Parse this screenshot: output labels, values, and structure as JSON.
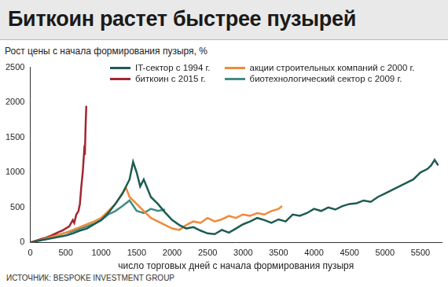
{
  "chart_data": {
    "type": "line",
    "title": "Биткоин растет быстрее пузырей",
    "y_label": "Рост цены с начала формирования пузыря, %",
    "x_label": "число торговых дней с начала формирования пузыря",
    "source": "ИСТОЧНИК: BESPOKE INVESTMENT GROUP",
    "xlim": [
      0,
      5800
    ],
    "xticks": [
      0,
      500,
      1000,
      1500,
      2000,
      2500,
      3000,
      3500,
      4000,
      4500,
      5000,
      5500
    ],
    "ylim": [
      0,
      2500
    ],
    "yticks": [
      0,
      500,
      1000,
      1500,
      2000,
      2500
    ],
    "grid": false,
    "legend": "top",
    "series": [
      {
        "name": "IT-сектор с 1994 г.",
        "color": "#1d5c52",
        "x": [
          0,
          100,
          200,
          300,
          400,
          500,
          600,
          700,
          800,
          900,
          1000,
          1100,
          1200,
          1300,
          1400,
          1450,
          1500,
          1550,
          1600,
          1700,
          1800,
          1900,
          2000,
          2100,
          2200,
          2300,
          2400,
          2500,
          2600,
          2700,
          2800,
          2900,
          3000,
          3100,
          3200,
          3300,
          3400,
          3500,
          3600,
          3700,
          3800,
          3900,
          4000,
          4100,
          4200,
          4300,
          4400,
          4500,
          4600,
          4700,
          4800,
          4900,
          5000,
          5100,
          5200,
          5300,
          5400,
          5500,
          5600,
          5650,
          5700,
          5750
        ],
        "values": [
          0,
          20,
          40,
          60,
          80,
          100,
          130,
          170,
          200,
          260,
          320,
          420,
          550,
          700,
          900,
          1150,
          1000,
          800,
          900,
          650,
          550,
          430,
          320,
          250,
          200,
          220,
          170,
          130,
          120,
          180,
          140,
          200,
          260,
          300,
          350,
          320,
          280,
          330,
          300,
          400,
          380,
          420,
          480,
          450,
          500,
          470,
          520,
          550,
          560,
          600,
          580,
          650,
          700,
          750,
          800,
          850,
          900,
          1000,
          1050,
          1100,
          1180,
          1100
        ]
      },
      {
        "name": "акции строительных компаний с 2000 г.",
        "color": "#f08a3a",
        "x": [
          0,
          100,
          200,
          300,
          400,
          500,
          600,
          700,
          800,
          900,
          1000,
          1100,
          1200,
          1300,
          1350,
          1400,
          1500,
          1600,
          1700,
          1800,
          1900,
          2000,
          2100,
          2200,
          2300,
          2400,
          2500,
          2600,
          2700,
          2800,
          2900,
          3000,
          3100,
          3200,
          3300,
          3400,
          3500,
          3550
        ],
        "values": [
          0,
          20,
          50,
          80,
          110,
          140,
          180,
          220,
          260,
          300,
          350,
          450,
          550,
          700,
          780,
          650,
          550,
          450,
          350,
          300,
          250,
          200,
          180,
          250,
          300,
          280,
          350,
          300,
          330,
          380,
          350,
          400,
          380,
          420,
          400,
          450,
          480,
          520
        ]
      },
      {
        "name": "биткоин с 2015 г.",
        "color": "#a3262f",
        "x": [
          0,
          100,
          200,
          300,
          400,
          450,
          500,
          550,
          600,
          620,
          650,
          680,
          700,
          720,
          740,
          760,
          770,
          780,
          790
        ],
        "values": [
          0,
          30,
          60,
          100,
          150,
          170,
          200,
          230,
          320,
          280,
          400,
          450,
          550,
          800,
          1000,
          1300,
          1250,
          1650,
          1950
        ]
      },
      {
        "name": "биотехнологический сектор с 2009 г.",
        "color": "#3f8e83",
        "x": [
          0,
          100,
          200,
          300,
          400,
          500,
          600,
          700,
          800,
          900,
          1000,
          1100,
          1200,
          1300,
          1400,
          1500,
          1600,
          1700,
          1800,
          1900
        ],
        "values": [
          0,
          30,
          60,
          90,
          110,
          140,
          160,
          200,
          230,
          270,
          320,
          400,
          450,
          520,
          600,
          450,
          420,
          480,
          450,
          470
        ]
      }
    ]
  }
}
